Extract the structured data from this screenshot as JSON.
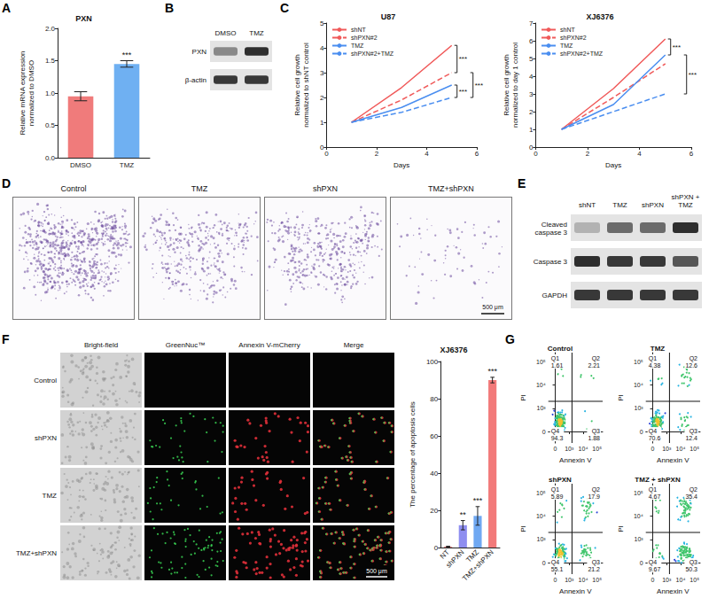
{
  "panel_letters": [
    "A",
    "B",
    "C",
    "D",
    "E",
    "F",
    "G"
  ],
  "blots": [
    {
      "lanes": [
        "DMSO",
        "TMZ"
      ],
      "rows": [
        "PXN",
        "β-actin"
      ]
    },
    {
      "lanes": [
        "shNT",
        "TMZ",
        "shPXN",
        "shPXN + TMZ"
      ],
      "rows": [
        "Cleaved caspase 3",
        "Caspase 3",
        "GAPDH"
      ]
    }
  ],
  "colony_images": {
    "titles": [
      "Control",
      "TMZ",
      "shPXN",
      "TMZ+shPXN"
    ],
    "scale_bar": "500 μm"
  },
  "micrographs": {
    "columns": [
      "Bright-field",
      "GreenNuc™",
      "Annexin V-mCherry",
      "Merge"
    ],
    "rows": [
      "Control",
      "shPXN",
      "TMZ",
      "TMZ+shPXN"
    ],
    "scale_bar": "500 μm"
  },
  "chart_data": [
    {
      "type": "bar",
      "title": "PXN",
      "y_label": "Relative mRNA expression normalized to DMSO",
      "categories": [
        "DMSO",
        "TMZ"
      ],
      "values": [
        0.95,
        1.45
      ],
      "errors": [
        0.07,
        0.05
      ],
      "colors": [
        "#f07b7b",
        "#6fb0f2"
      ],
      "ylim": [
        0,
        2
      ],
      "yticks": [
        {
          "value": 0,
          "label": "0.0"
        },
        0.5,
        {
          "value": 1,
          "label": "1.0"
        },
        1.5,
        {
          "value": 2,
          "label": "2.0"
        }
      ],
      "significance": [
        {
          "category": "TMZ",
          "label": "***"
        }
      ]
    },
    {
      "type": "line",
      "title": "U87",
      "x_label": "Days",
      "y_label": "Relative cell growth normalized to shNT control",
      "x": [
        1,
        3,
        5
      ],
      "series": [
        {
          "name": "shNT",
          "color": "#f05a5a",
          "line_style": "solid",
          "values": [
            1,
            2.4,
            4.1
          ]
        },
        {
          "name": "shPXN#2",
          "color": "#f05a5a",
          "line_style": "dashed",
          "values": [
            1,
            1.9,
            3.0
          ]
        },
        {
          "name": "TMZ",
          "color": "#4a8ef0",
          "line_style": "solid",
          "values": [
            1,
            1.6,
            2.5
          ]
        },
        {
          "name": "shPXN#2+TMZ",
          "color": "#4a8ef0",
          "line_style": "dashed",
          "values": [
            1,
            1.4,
            2.0
          ]
        }
      ],
      "xlim": [
        0,
        6
      ],
      "xticks": [
        0,
        2,
        4,
        6
      ],
      "ylim": [
        0,
        5
      ],
      "yticks": [
        0,
        1,
        2,
        3,
        4,
        5
      ],
      "legend": "upper left",
      "comparisons": [
        {
          "series": [
            "shNT",
            "shPXN#2"
          ],
          "label": "***"
        },
        {
          "series": [
            "shPXN#2",
            "shPXN#2+TMZ"
          ],
          "label": "***"
        },
        {
          "series": [
            "TMZ",
            "shPXN#2+TMZ"
          ],
          "label": "***"
        }
      ]
    },
    {
      "type": "line",
      "title": "XJ6376",
      "x_label": "Days",
      "y_label": "Relative cell growth normalized to day 1 control",
      "x": [
        1,
        3,
        5
      ],
      "series": [
        {
          "name": "shNT",
          "color": "#f05a5a",
          "line_style": "solid",
          "values": [
            1,
            3.3,
            6.1
          ]
        },
        {
          "name": "shPXN#2",
          "color": "#f05a5a",
          "line_style": "dashed",
          "values": [
            1,
            2.8,
            4.7
          ]
        },
        {
          "name": "TMZ",
          "color": "#4a8ef0",
          "line_style": "solid",
          "values": [
            1,
            2.4,
            5.2
          ]
        },
        {
          "name": "shPXN#2+TMZ",
          "color": "#4a8ef0",
          "line_style": "dashed",
          "values": [
            1,
            2.0,
            3.0
          ]
        }
      ],
      "xlim": [
        0,
        6
      ],
      "xticks": [
        0,
        2,
        4,
        6
      ],
      "ylim": [
        0,
        7
      ],
      "yticks": [
        0,
        1,
        2,
        3,
        4,
        5,
        6,
        7
      ],
      "legend": "upper left",
      "comparisons": [
        {
          "series": [
            "shNT",
            "TMZ"
          ],
          "label": "***"
        },
        {
          "series": [
            "TMZ",
            "shPXN#2+TMZ"
          ],
          "label": "***"
        }
      ]
    },
    {
      "type": "bar",
      "title": "XJ6376",
      "y_label": "The percentage of apoptosis cells",
      "categories": [
        "NT",
        "shPXN",
        "TMZ",
        "TMZ+shPXN"
      ],
      "values": [
        0.5,
        12,
        17,
        90
      ],
      "errors": [
        0.2,
        2.5,
        5,
        1.5
      ],
      "colors": [
        "#f28b8b",
        "#8e8ef0",
        "#6fa8f2",
        "#f27a7a"
      ],
      "ylim": [
        0,
        100
      ],
      "yticks": [
        0,
        20,
        40,
        60,
        80,
        100
      ],
      "significance": [
        {
          "category": "shPXN",
          "label": "**"
        },
        {
          "category": "TMZ",
          "label": "***"
        },
        {
          "category": "TMZ+shPXN",
          "label": "***"
        }
      ]
    },
    {
      "type": "quadrant",
      "title": "Control",
      "x_label": "Annexin V",
      "y_label": "PI",
      "quadrants": [
        {
          "name": "Q1",
          "value": 1.61
        },
        {
          "name": "Q2",
          "value": 2.21
        },
        {
          "name": "Q3",
          "value": 1.88
        },
        {
          "name": "Q4",
          "value": 94.3
        }
      ],
      "gate": [
        1.2,
        1.3
      ],
      "xlim": [
        -0.5,
        3.4
      ],
      "ylim": [
        -0.5,
        3.4
      ],
      "xticks": [
        0,
        {
          "value": 1,
          "label": "10³"
        },
        {
          "value": 2,
          "label": "10⁴"
        },
        {
          "value": 3,
          "label": "10⁵"
        }
      ],
      "yticks": [
        0,
        {
          "value": 1,
          "label": "10³"
        },
        {
          "value": 2,
          "label": "10⁴"
        },
        {
          "value": 3,
          "label": "10⁵"
        }
      ]
    },
    {
      "type": "quadrant",
      "title": "TMZ",
      "x_label": "Annexin V",
      "y_label": "PI",
      "quadrants": [
        {
          "name": "Q1",
          "value": 4.38
        },
        {
          "name": "Q2",
          "value": 12.6
        },
        {
          "name": "Q3",
          "value": 12.4
        },
        {
          "name": "Q4",
          "value": 70.6
        }
      ],
      "gate": [
        1.2,
        1.3
      ],
      "xlim": [
        -0.5,
        3.4
      ],
      "ylim": [
        -0.5,
        3.4
      ],
      "xticks": [
        0,
        {
          "value": 1,
          "label": "10³"
        },
        {
          "value": 2,
          "label": "10⁴"
        },
        {
          "value": 3,
          "label": "10⁵"
        }
      ],
      "yticks": [
        0,
        {
          "value": 1,
          "label": "10³"
        },
        {
          "value": 2,
          "label": "10⁴"
        },
        {
          "value": 3,
          "label": "10⁵"
        }
      ]
    },
    {
      "type": "quadrant",
      "title": "shPXN",
      "x_label": "Annexin V",
      "y_label": "PI",
      "quadrants": [
        {
          "name": "Q1",
          "value": 5.89
        },
        {
          "name": "Q2",
          "value": 17.9
        },
        {
          "name": "Q3",
          "value": 21.2
        },
        {
          "name": "Q4",
          "value": 55.1
        }
      ],
      "gate": [
        1.2,
        1.3
      ],
      "xlim": [
        -0.5,
        3.4
      ],
      "ylim": [
        -0.5,
        3.4
      ],
      "xticks": [
        0,
        {
          "value": 1,
          "label": "10³"
        },
        {
          "value": 2,
          "label": "10⁴"
        },
        {
          "value": 3,
          "label": "10⁵"
        }
      ],
      "yticks": [
        0,
        {
          "value": 1,
          "label": "10³"
        },
        {
          "value": 2,
          "label": "10⁴"
        },
        {
          "value": 3,
          "label": "10⁵"
        }
      ]
    },
    {
      "type": "quadrant",
      "title": "TMZ + shPXN",
      "x_label": "Annexin V",
      "y_label": "PI",
      "quadrants": [
        {
          "name": "Q1",
          "value": 4.67
        },
        {
          "name": "Q2",
          "value": 35.4
        },
        {
          "name": "Q3",
          "value": 50.3
        },
        {
          "name": "Q4",
          "value": 9.67
        }
      ],
      "gate": [
        1.2,
        1.3
      ],
      "xlim": [
        -0.5,
        3.4
      ],
      "ylim": [
        -0.5,
        3.4
      ],
      "xticks": [
        0,
        {
          "value": 1,
          "label": "10³"
        },
        {
          "value": 2,
          "label": "10⁴"
        },
        {
          "value": 3,
          "label": "10⁵"
        }
      ],
      "yticks": [
        0,
        {
          "value": 1,
          "label": "10³"
        },
        {
          "value": 2,
          "label": "10⁴"
        },
        {
          "value": 3,
          "label": "10⁵"
        }
      ]
    }
  ]
}
